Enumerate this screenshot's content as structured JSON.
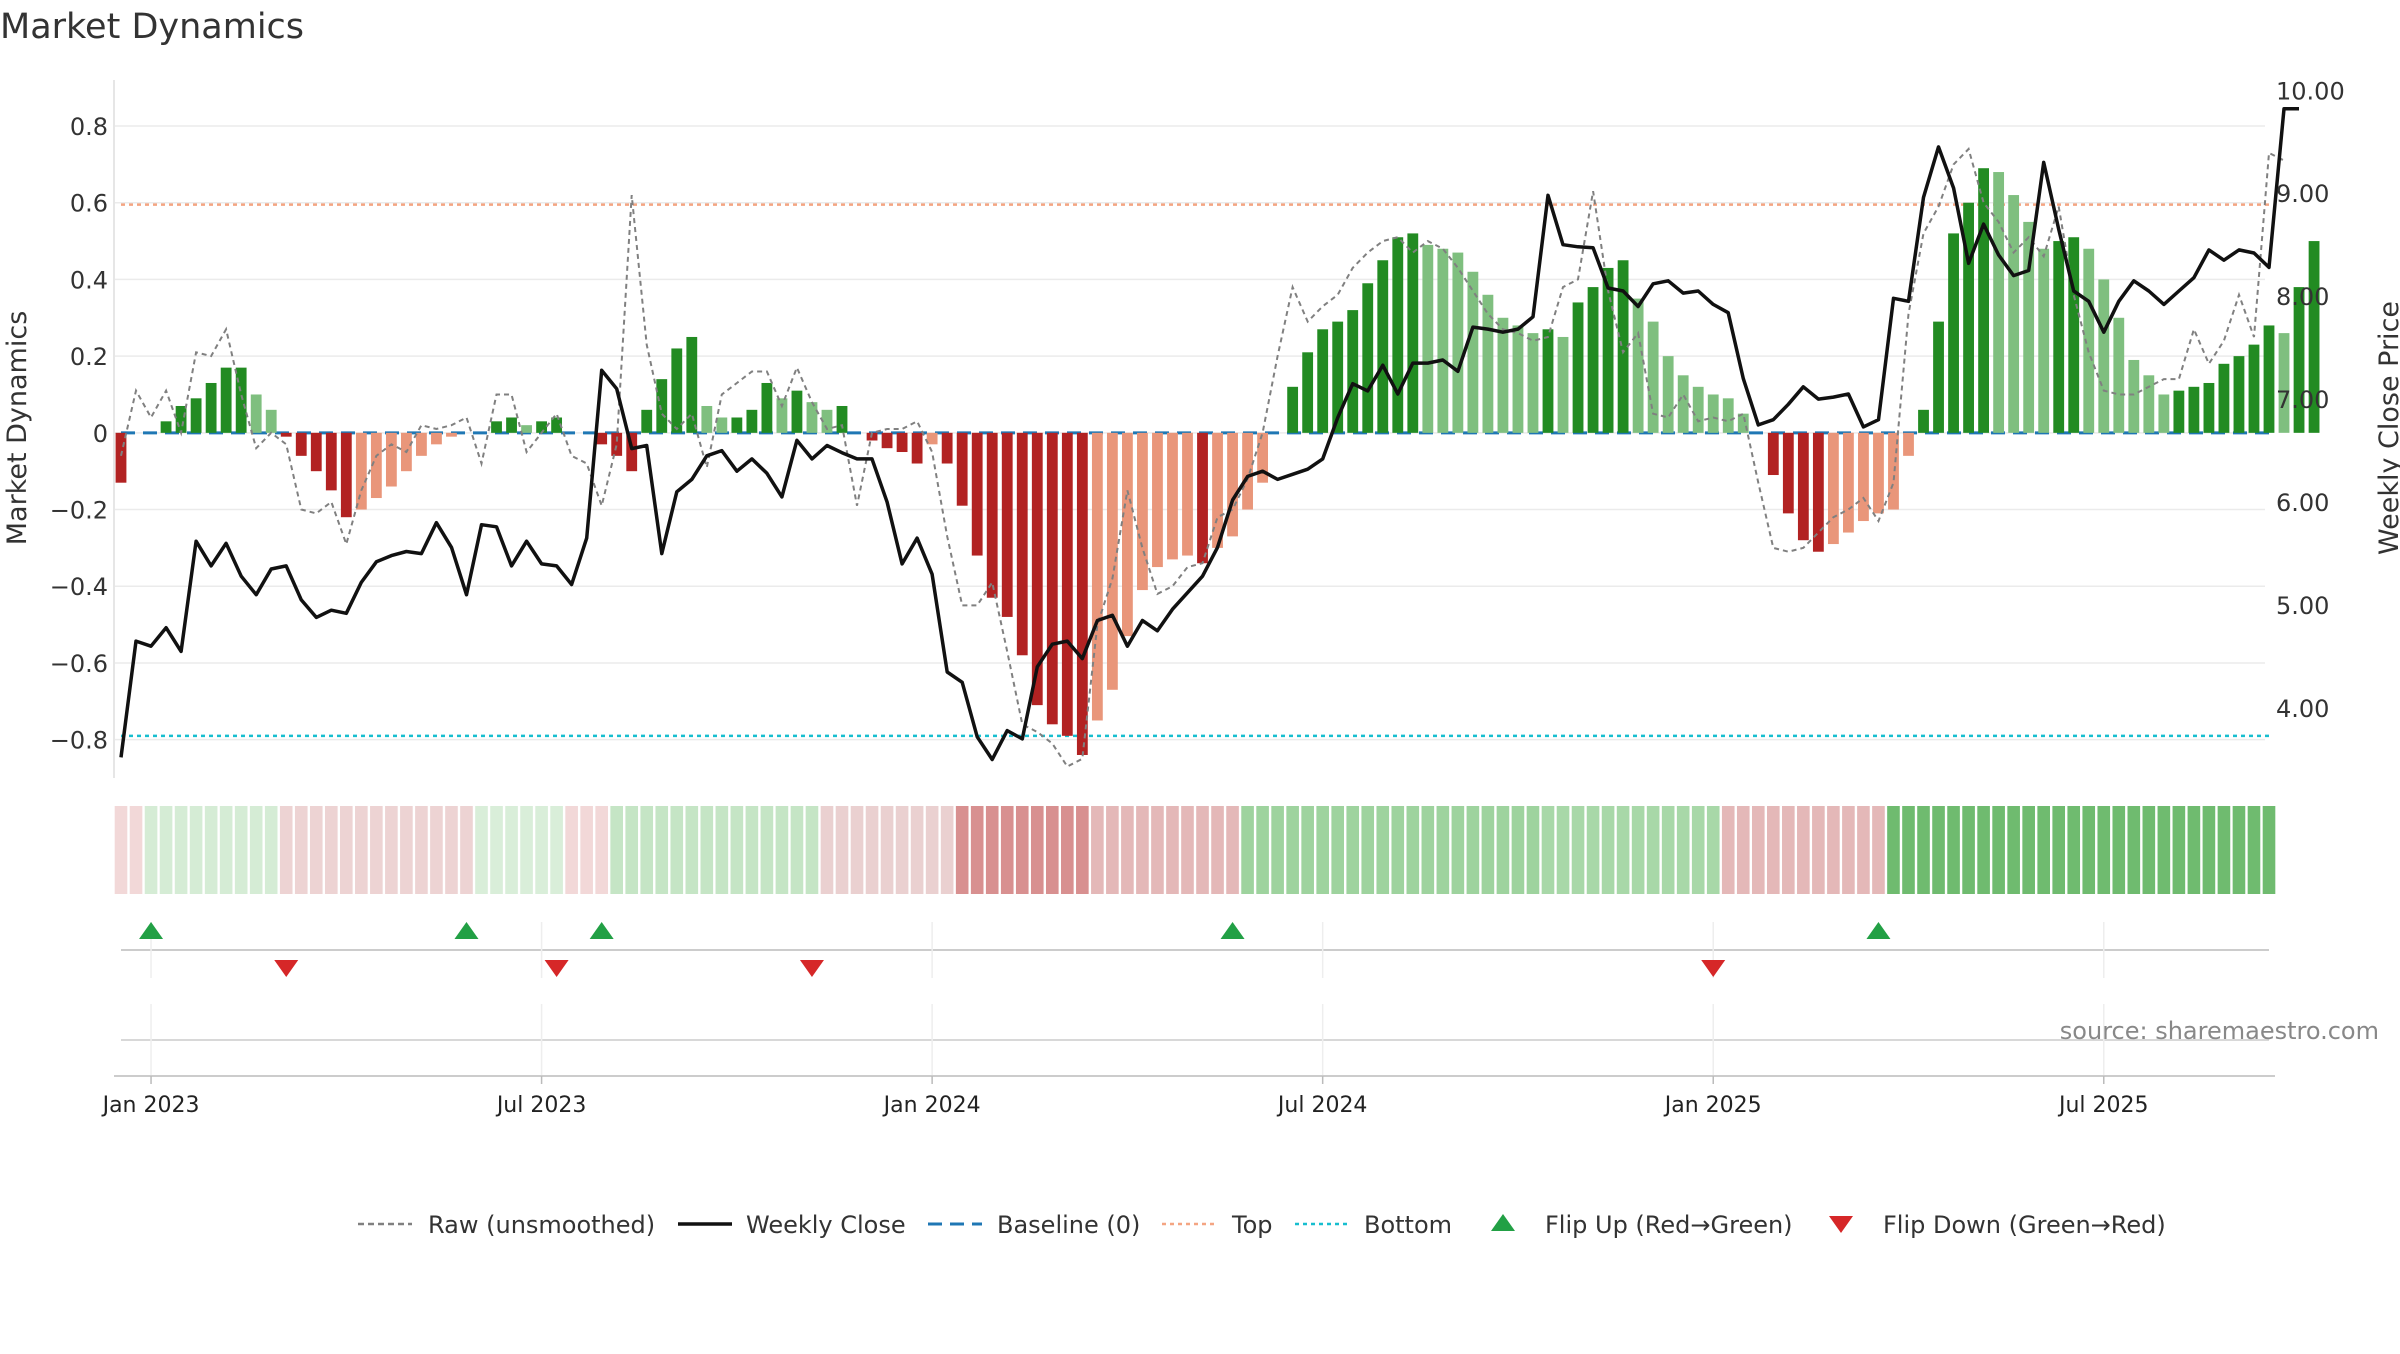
{
  "chart_data": {
    "type": "bar",
    "title": "Market Dynamics",
    "y_left_label": "Market Dynamics",
    "y_right_label": "Weekly Close Price",
    "y_left_ticks": [
      "0.8",
      "0.6",
      "0.4",
      "0.2",
      "0",
      "−0.2",
      "−0.4",
      "−0.6",
      "−0.8"
    ],
    "y_left_tick_values": [
      0.8,
      0.6,
      0.4,
      0.2,
      0,
      -0.2,
      -0.4,
      -0.6,
      -0.8
    ],
    "y_left_range": [
      -0.9,
      0.92
    ],
    "y_right_ticks": [
      "10.00",
      "9.00",
      "8.00",
      "7.00",
      "6.00",
      "5.00",
      "4.00"
    ],
    "y_right_tick_values": [
      10,
      9,
      8,
      7,
      6,
      5,
      4
    ],
    "y_right_range": [
      3.32,
      10.1
    ],
    "x_ticks": [
      "Jan 2023",
      "Jul 2023",
      "Jan 2024",
      "Jul 2024",
      "Jan 2025",
      "Jul 2025"
    ],
    "x_tick_index": [
      2,
      28,
      54,
      80,
      106,
      132
    ],
    "top_level": 0.595,
    "bottom_level": -0.79,
    "baseline_level": 0,
    "grid": true,
    "source": "source: sharemaestro.com",
    "legend_position": "bottom",
    "legend": {
      "raw": "Raw (unsmoothed)",
      "close": "Weekly Close",
      "baseline": "Baseline (0)",
      "top": "Top",
      "bottom": "Bottom",
      "flip_up": "Flip Up (Red→Green)",
      "flip_down": "Flip Down (Green→Red)"
    },
    "colors": {
      "strong_green": "#228b22",
      "light_green": "#7fbf7f",
      "strong_red": "#b22222",
      "light_red": "#e9967a",
      "close": "#111111",
      "raw": "#808080",
      "baseline": "#1f77b4",
      "top": "#f4a582",
      "bottom": "#17becf",
      "flip_up": "#22a045",
      "flip_down": "#d62728"
    },
    "weeks": 144,
    "series": [
      {
        "name": "Market Dynamics",
        "values": [
          -0.13,
          0.0,
          0.0,
          0.03,
          0.07,
          0.09,
          0.13,
          0.17,
          0.17,
          0.1,
          0.06,
          -0.01,
          -0.06,
          -0.1,
          -0.15,
          -0.22,
          -0.2,
          -0.17,
          -0.14,
          -0.1,
          -0.06,
          -0.03,
          -0.01,
          0.0,
          0.0,
          0.03,
          0.04,
          0.02,
          0.03,
          0.04,
          0.0,
          0.0,
          -0.03,
          -0.06,
          -0.1,
          0.06,
          0.14,
          0.22,
          0.25,
          0.07,
          0.04,
          0.04,
          0.06,
          0.13,
          0.09,
          0.11,
          0.08,
          0.06,
          0.07,
          0.0,
          -0.02,
          -0.04,
          -0.05,
          -0.08,
          -0.03,
          -0.08,
          -0.19,
          -0.32,
          -0.43,
          -0.48,
          -0.58,
          -0.71,
          -0.76,
          -0.79,
          -0.84,
          -0.75,
          -0.67,
          -0.53,
          -0.41,
          -0.35,
          -0.33,
          -0.32,
          -0.34,
          -0.3,
          -0.27,
          -0.2,
          -0.13,
          0.0,
          0.12,
          0.21,
          0.27,
          0.29,
          0.32,
          0.39,
          0.45,
          0.51,
          0.52,
          0.49,
          0.48,
          0.47,
          0.42,
          0.36,
          0.3,
          0.28,
          0.26,
          0.27,
          0.25,
          0.34,
          0.38,
          0.43,
          0.45,
          0.35,
          0.29,
          0.2,
          0.15,
          0.12,
          0.1,
          0.09,
          0.05,
          0.0,
          -0.11,
          -0.21,
          -0.28,
          -0.31,
          -0.29,
          -0.26,
          -0.23,
          -0.21,
          -0.2,
          -0.06,
          0.06,
          0.29,
          0.52,
          0.6,
          0.69,
          0.68,
          0.62,
          0.55,
          0.48,
          0.5,
          0.51,
          0.48,
          0.4,
          0.3,
          0.19,
          0.15,
          0.1,
          0.11,
          0.12,
          0.13,
          0.18,
          0.2,
          0.23,
          0.28,
          0.26,
          0.38,
          0.5
        ]
      },
      {
        "name": "Raw (unsmoothed)",
        "values": [
          -0.06,
          0.11,
          0.04,
          0.11,
          0.0,
          0.21,
          0.2,
          0.27,
          0.1,
          -0.04,
          0.0,
          -0.03,
          -0.2,
          -0.21,
          -0.18,
          -0.29,
          -0.15,
          -0.06,
          -0.03,
          -0.05,
          0.02,
          0.01,
          0.02,
          0.04,
          -0.08,
          0.1,
          0.1,
          -0.05,
          0.0,
          0.05,
          -0.06,
          -0.08,
          -0.19,
          -0.03,
          0.62,
          0.23,
          0.05,
          0.01,
          0.05,
          -0.09,
          0.1,
          0.13,
          0.16,
          0.16,
          0.07,
          0.17,
          0.08,
          0.01,
          0.02,
          -0.19,
          0.0,
          0.01,
          0.01,
          0.03,
          -0.05,
          -0.27,
          -0.45,
          -0.45,
          -0.39,
          -0.57,
          -0.76,
          -0.78,
          -0.81,
          -0.87,
          -0.85,
          -0.5,
          -0.38,
          -0.15,
          -0.3,
          -0.42,
          -0.4,
          -0.35,
          -0.34,
          -0.22,
          -0.2,
          -0.12,
          0.0,
          0.2,
          0.38,
          0.29,
          0.33,
          0.36,
          0.43,
          0.47,
          0.5,
          0.51,
          0.47,
          0.5,
          0.48,
          0.43,
          0.37,
          0.31,
          0.27,
          0.26,
          0.24,
          0.25,
          0.38,
          0.4,
          0.63,
          0.37,
          0.21,
          0.26,
          0.05,
          0.04,
          0.1,
          0.03,
          0.04,
          0.03,
          0.05,
          -0.13,
          -0.3,
          -0.31,
          -0.3,
          -0.26,
          -0.22,
          -0.2,
          -0.17,
          -0.23,
          -0.13,
          0.31,
          0.52,
          0.59,
          0.7,
          0.74,
          0.6,
          0.55,
          0.47,
          0.51,
          0.46,
          0.59,
          0.36,
          0.21,
          0.11,
          0.1,
          0.1,
          0.12,
          0.14,
          0.14,
          0.27,
          0.18,
          0.24,
          0.36,
          0.25,
          0.73,
          0.71
        ]
      },
      {
        "name": "Weekly Close",
        "values": [
          3.52,
          4.65,
          4.6,
          4.78,
          4.55,
          5.62,
          5.38,
          5.6,
          5.28,
          5.1,
          5.35,
          5.38,
          5.05,
          4.88,
          4.95,
          4.92,
          5.22,
          5.42,
          5.48,
          5.52,
          5.5,
          5.8,
          5.56,
          5.1,
          5.78,
          5.76,
          5.38,
          5.62,
          5.4,
          5.38,
          5.2,
          5.65,
          7.28,
          7.1,
          6.52,
          6.55,
          5.5,
          6.1,
          6.22,
          6.45,
          6.5,
          6.3,
          6.42,
          6.28,
          6.05,
          6.6,
          6.42,
          6.55,
          6.48,
          6.42,
          6.42,
          6.0,
          5.4,
          5.65,
          5.3,
          4.35,
          4.25,
          3.72,
          3.5,
          3.78,
          3.7,
          4.4,
          4.62,
          4.65,
          4.48,
          4.85,
          4.9,
          4.6,
          4.85,
          4.75,
          4.96,
          5.12,
          5.28,
          5.56,
          6.02,
          6.25,
          6.3,
          6.22,
          6.27,
          6.32,
          6.42,
          6.82,
          7.15,
          7.08,
          7.33,
          7.05,
          7.35,
          7.35,
          7.38,
          7.27,
          7.7,
          7.68,
          7.65,
          7.68,
          7.8,
          8.98,
          8.5,
          8.48,
          8.47,
          8.08,
          8.05,
          7.9,
          8.12,
          8.15,
          8.03,
          8.05,
          7.92,
          7.84,
          7.2,
          6.75,
          6.8,
          6.95,
          7.12,
          7.0,
          7.02,
          7.05,
          6.73,
          6.8,
          7.98,
          7.95,
          8.96,
          9.45,
          9.05,
          8.32,
          8.7,
          8.4,
          8.2,
          8.25,
          9.3,
          8.65,
          8.05,
          7.95,
          7.65,
          7.95,
          8.15,
          8.05,
          7.92,
          8.05,
          8.18,
          8.45,
          8.35,
          8.45,
          8.42,
          8.28,
          9.82,
          9.82
        ]
      }
    ],
    "phase_strip": [
      {
        "color": "#f2d8d8",
        "from": 0,
        "to": 1
      },
      {
        "color": "#d5ecd5",
        "from": 2,
        "to": 10
      },
      {
        "color": "#edd3d3",
        "from": 11,
        "to": 23
      },
      {
        "color": "#d9eed9",
        "from": 24,
        "to": 29
      },
      {
        "color": "#f2d8d8",
        "from": 30,
        "to": 32
      },
      {
        "color": "#c5e5c5",
        "from": 33,
        "to": 46
      },
      {
        "color": "#ead0d0",
        "from": 47,
        "to": 55
      },
      {
        "color": "#d89090",
        "from": 56,
        "to": 64
      },
      {
        "color": "#e4b8b8",
        "from": 65,
        "to": 74
      },
      {
        "color": "#9ed39e",
        "from": 75,
        "to": 94
      },
      {
        "color": "#a8d8a8",
        "from": 95,
        "to": 106
      },
      {
        "color": "#e4b8b8",
        "from": 107,
        "to": 117
      },
      {
        "color": "#6fbb6f",
        "from": 118,
        "to": 143
      }
    ],
    "flip_up_weeks": [
      2,
      23,
      32,
      74,
      117
    ],
    "flip_down_weeks": [
      11,
      29,
      46,
      106
    ]
  }
}
